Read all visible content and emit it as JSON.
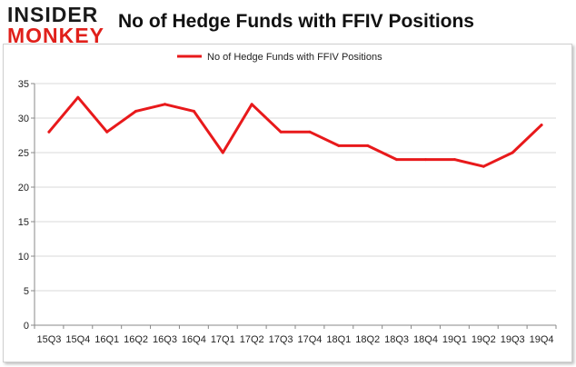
{
  "logo": {
    "line1": "INSIDER",
    "line2": "MONKEY"
  },
  "chart_data": {
    "type": "line",
    "title": "No of Hedge Funds with FFIV Positions",
    "xlabel": "",
    "ylabel": "",
    "categories": [
      "15Q3",
      "15Q4",
      "16Q1",
      "16Q2",
      "16Q3",
      "16Q4",
      "17Q1",
      "17Q2",
      "17Q3",
      "17Q4",
      "18Q1",
      "18Q2",
      "18Q3",
      "18Q4",
      "19Q1",
      "19Q2",
      "19Q3",
      "19Q4"
    ],
    "series": [
      {
        "name": "No of Hedge Funds with FFIV Positions",
        "color": "#e8191b",
        "values": [
          28,
          33,
          28,
          31,
          32,
          31,
          25,
          32,
          28,
          28,
          26,
          26,
          24,
          24,
          24,
          23,
          25,
          29
        ]
      }
    ],
    "ylim": [
      0,
      35
    ],
    "yticks": [
      0,
      5,
      10,
      15,
      20,
      25,
      30,
      35
    ],
    "grid": true,
    "legend": "top-center"
  }
}
